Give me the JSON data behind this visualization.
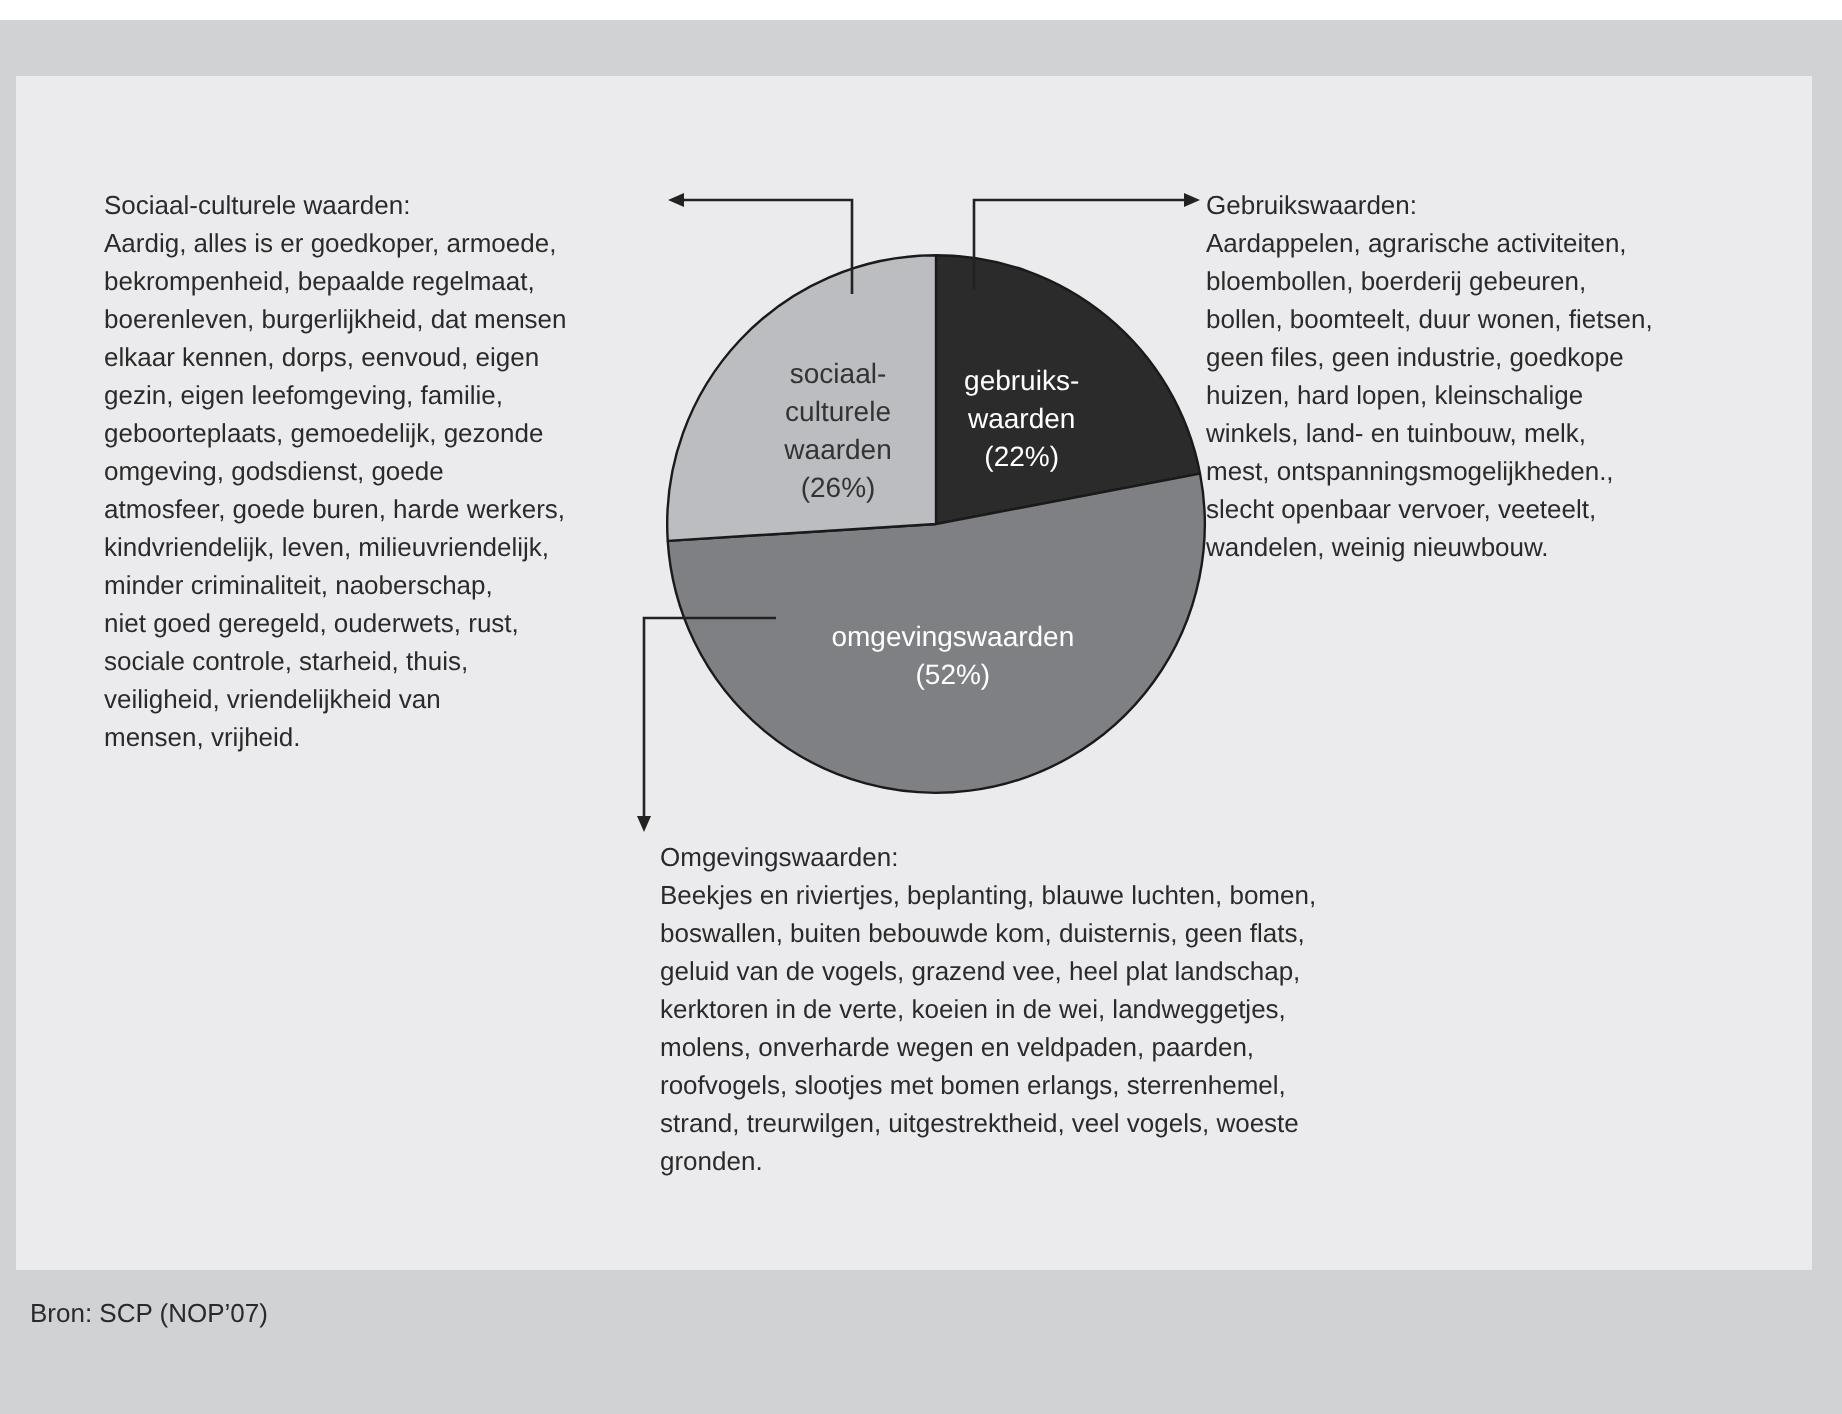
{
  "chart_data": {
    "type": "pie",
    "categories": [
      "gebruiks-\nwaarden",
      "omgevingswaarden",
      "sociaal-\nculturele\nwaarden"
    ],
    "values": [
      22,
      52,
      26
    ],
    "colors": [
      "#2b2b2c",
      "#7f8083",
      "#bcbdc0"
    ],
    "value_labels": [
      "(22%)",
      "(52%)",
      "(26%)"
    ],
    "legend": false,
    "annotations": [
      "Sociaal-culturele waarden:\nAardig, alles is er goedkoper, armoede,\nbekrompenheid, bepaalde regelmaat,\nboerenleven, burgerlijkheid, dat mensen\nelkaar kennen, dorps, eenvoud, eigen\ngezin, eigen leefomgeving, familie,\ngeboorteplaats, gemoedelijk, gezonde\nomgeving, godsdienst, goede\natmosfeer, goede buren, harde werkers,\nkindvriendelijk, leven, milieuvriendelijk,\nminder criminaliteit, naoberschap,\nniet goed geregeld, ouderwets, rust,\nsociale controle, starheid, thuis,\nveiligheid, vriendelijkheid van\nmensen, vrijheid.",
      "Gebruikswaarden:\nAardappelen, agrarische activiteiten,\nbloembollen, boerderij gebeuren,\nbollen, boomteelt, duur wonen, fietsen,\ngeen files, geen industrie, goedkope\nhuizen, hard lopen, kleinschalige\nwinkels, land- en tuinbouw, melk,\nmest, ontspanningsmogelijkheden.,\nslecht openbaar vervoer, veeteelt,\nwandelen, weinig nieuwbouw.",
      "Omgevingswaarden:\nBeekjes en riviertjes, beplanting, blauwe luchten, bomen,\nboswallen, buiten bebouwde kom, duisternis, geen flats,\ngeluid van de vogels, grazend vee, heel plat landschap,\nkerktoren in de verte, koeien in de wei, landweggetjes,\nmolens, onverharde wegen en veldpaden, paarden,\nroofvogels, slootjes met bomen erlangs, sterrenhemel,\nstrand, treurwilgen, uitgestrektheid, veel vogels, woeste\ngronden.",
      "Bron: SCP (NOP’07)"
    ]
  }
}
